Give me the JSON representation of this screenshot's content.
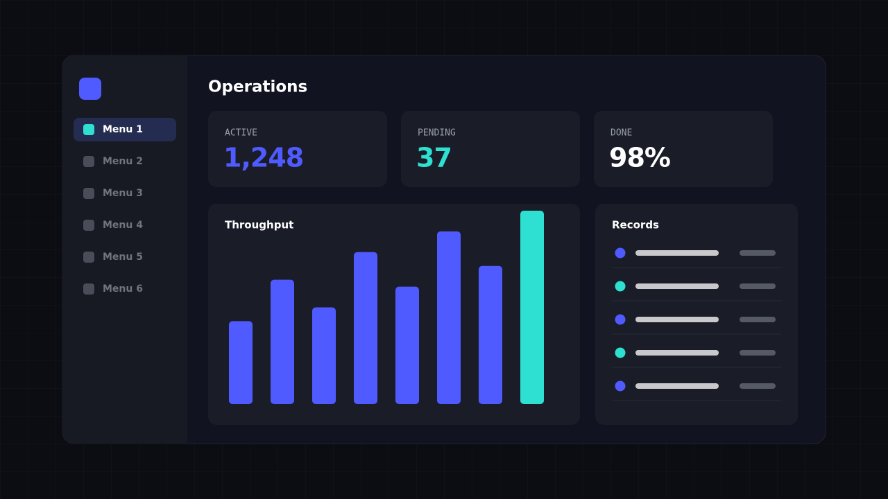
{
  "header": {
    "title": "Operations"
  },
  "sidebar": {
    "menu": [
      "Menu 1",
      "Menu 2",
      "Menu 3",
      "Menu 4",
      "Menu 5",
      "Menu 6"
    ]
  },
  "stats": [
    {
      "label": "ACTIVE",
      "value": "1,248",
      "color": "#4f5bff"
    },
    {
      "label": "PENDING",
      "value": "37",
      "color": "#2ee0d2"
    },
    {
      "label": "DONE",
      "value": "98%",
      "color": "#ffffff"
    }
  ],
  "chart_data": {
    "type": "bar",
    "title": "Throughput",
    "values": [
      120,
      180,
      140,
      220,
      170,
      250,
      200,
      280
    ],
    "colors": [
      "#4f5bff",
      "#4f5bff",
      "#4f5bff",
      "#4f5bff",
      "#4f5bff",
      "#4f5bff",
      "#4f5bff",
      "#2ee0d2"
    ],
    "ylim": [
      0,
      280
    ]
  },
  "records": {
    "title": "Records"
  }
}
